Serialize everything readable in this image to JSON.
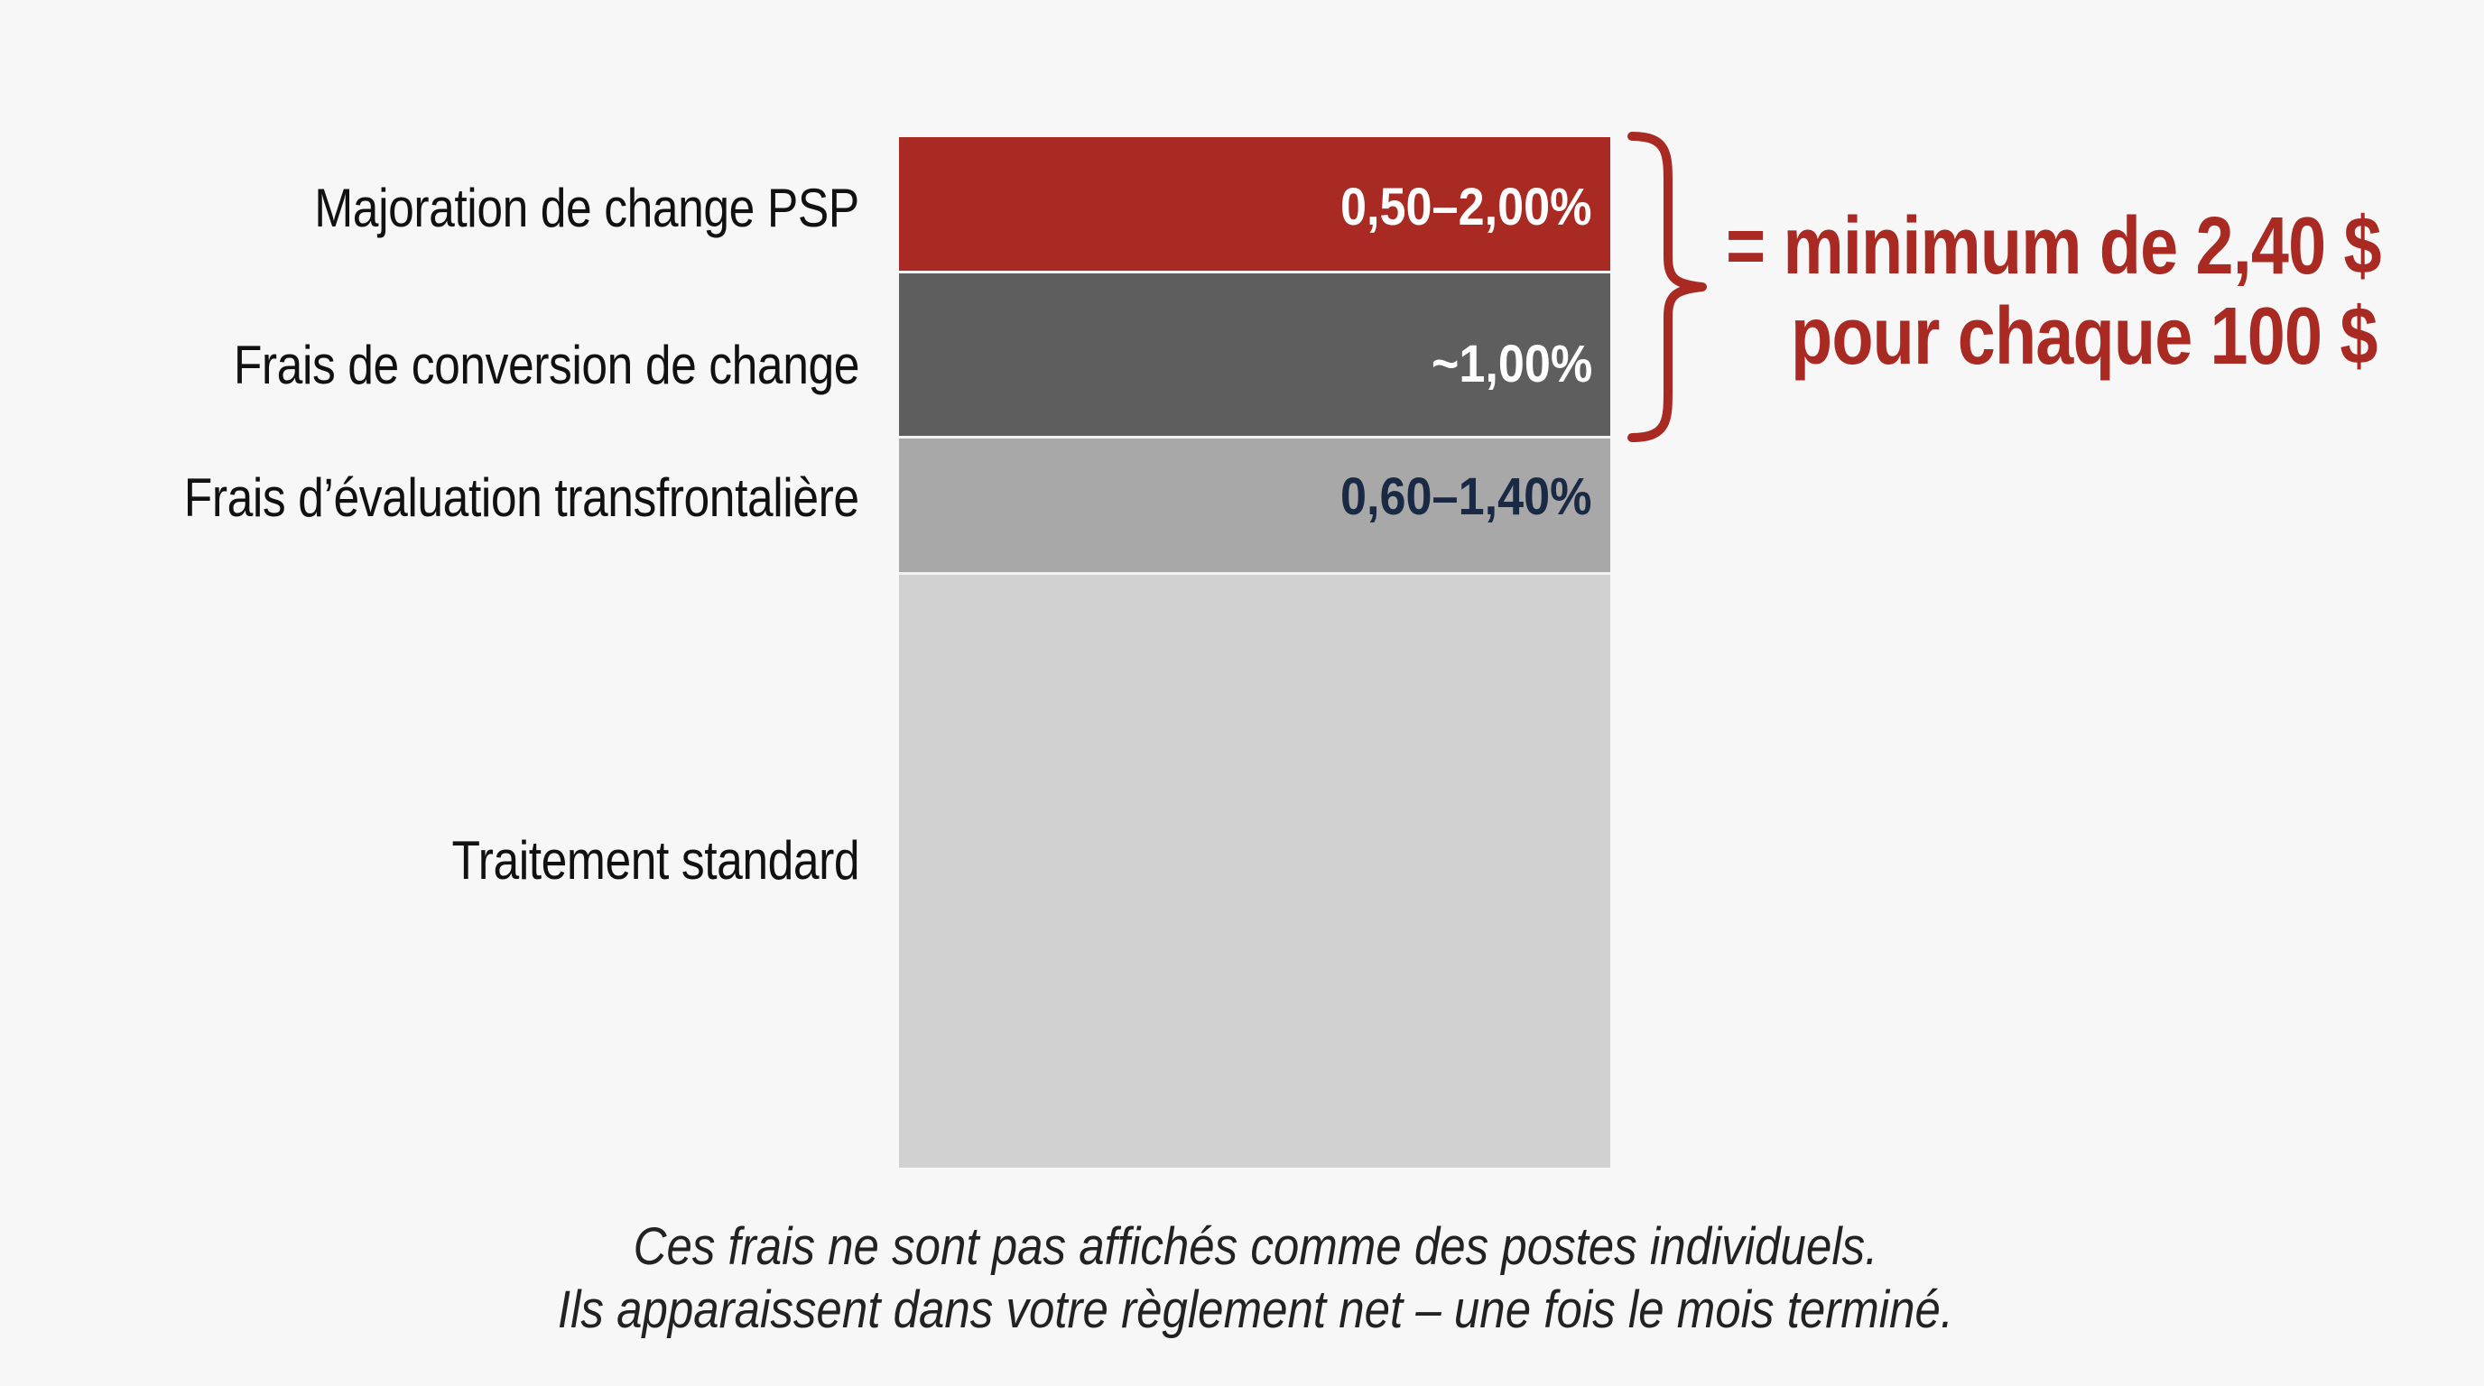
{
  "chart_data": {
    "type": "bar",
    "stacked": true,
    "categories": [
      "Majoration de change PSP",
      "Frais de conversion de change",
      "Frais d’évaluation transfrontalière",
      "Traitement standard"
    ],
    "value_labels": [
      "0,50–2,00%",
      "~1,00%",
      "0,60–1,40%",
      ""
    ],
    "colors": [
      "#a82a22",
      "#5e5e5e",
      "#a8a8a8",
      "#d1d1d1"
    ],
    "value_label_colors": [
      "#ffffff",
      "#ffffff",
      "#1b2a44",
      "#ffffff"
    ],
    "bracket_color": "#a82a22",
    "callout": {
      "line1": "= minimum de 2,40 $",
      "line2": "pour chaque 100 $",
      "color": "#a82a22"
    },
    "footnote": {
      "line1": "Ces frais ne sont pas affichés comme des postes individuels.",
      "line2": "Ils apparaissent dans votre règlement net – une fois le mois terminé."
    }
  }
}
